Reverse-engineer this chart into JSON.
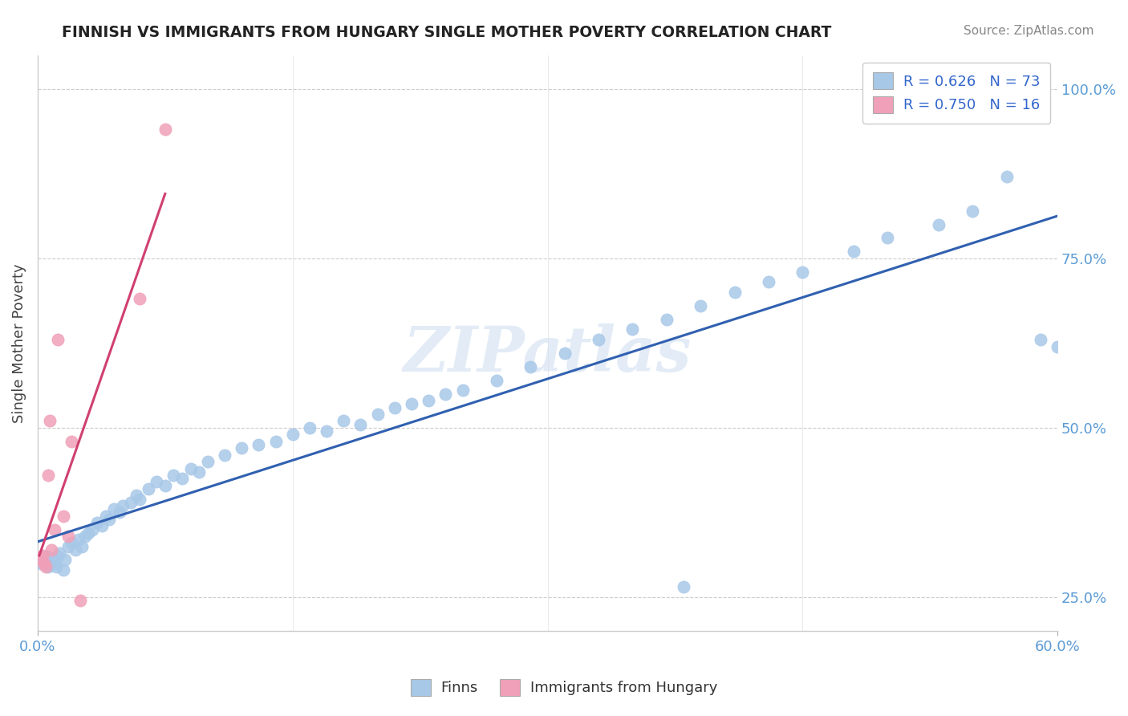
{
  "title": "FINNISH VS IMMIGRANTS FROM HUNGARY SINGLE MOTHER POVERTY CORRELATION CHART",
  "source": "Source: ZipAtlas.com",
  "ylabel": "Single Mother Poverty",
  "watermark": "ZIPatlas",
  "finns_color": "#a8c8e8",
  "hungary_color": "#f0a0b8",
  "trend_finns_color": "#3060b0",
  "trend_hungary_color": "#d04070",
  "finns_x": [
    0.002,
    0.003,
    0.004,
    0.005,
    0.006,
    0.007,
    0.008,
    0.009,
    0.01,
    0.011,
    0.012,
    0.013,
    0.015,
    0.016,
    0.018,
    0.02,
    0.022,
    0.024,
    0.026,
    0.028,
    0.03,
    0.032,
    0.035,
    0.038,
    0.04,
    0.042,
    0.045,
    0.048,
    0.05,
    0.055,
    0.058,
    0.06,
    0.065,
    0.07,
    0.075,
    0.08,
    0.085,
    0.09,
    0.095,
    0.1,
    0.11,
    0.12,
    0.13,
    0.14,
    0.15,
    0.16,
    0.17,
    0.18,
    0.19,
    0.2,
    0.21,
    0.22,
    0.23,
    0.24,
    0.25,
    0.27,
    0.29,
    0.31,
    0.33,
    0.35,
    0.37,
    0.39,
    0.41,
    0.43,
    0.45,
    0.48,
    0.5,
    0.53,
    0.55,
    0.57,
    0.59,
    0.6,
    0.38
  ],
  "finns_y": [
    0.3,
    0.302,
    0.305,
    0.31,
    0.295,
    0.298,
    0.308,
    0.303,
    0.3,
    0.295,
    0.31,
    0.315,
    0.29,
    0.305,
    0.325,
    0.33,
    0.32,
    0.335,
    0.325,
    0.34,
    0.345,
    0.35,
    0.36,
    0.355,
    0.37,
    0.365,
    0.38,
    0.375,
    0.385,
    0.39,
    0.4,
    0.395,
    0.41,
    0.42,
    0.415,
    0.43,
    0.425,
    0.44,
    0.435,
    0.45,
    0.46,
    0.47,
    0.475,
    0.48,
    0.49,
    0.5,
    0.495,
    0.51,
    0.505,
    0.52,
    0.53,
    0.535,
    0.54,
    0.55,
    0.555,
    0.57,
    0.59,
    0.61,
    0.63,
    0.645,
    0.66,
    0.68,
    0.7,
    0.715,
    0.73,
    0.76,
    0.78,
    0.8,
    0.82,
    0.87,
    0.63,
    0.62,
    0.265
  ],
  "hungary_x": [
    0.001,
    0.002,
    0.003,
    0.004,
    0.005,
    0.006,
    0.007,
    0.008,
    0.01,
    0.012,
    0.015,
    0.018,
    0.02,
    0.025,
    0.06,
    0.075
  ],
  "hungary_y": [
    0.305,
    0.308,
    0.312,
    0.3,
    0.295,
    0.43,
    0.51,
    0.32,
    0.35,
    0.63,
    0.37,
    0.34,
    0.48,
    0.245,
    0.69,
    0.94
  ],
  "xlim": [
    0.0,
    0.6
  ],
  "ylim": [
    0.2,
    1.05
  ],
  "yticks": [
    0.25,
    0.5,
    0.75,
    1.0
  ],
  "ytick_labels": [
    "25.0%",
    "50.0%",
    "75.0%",
    "100.0%"
  ],
  "xtick_labels": [
    "0.0%",
    "60.0%"
  ],
  "legend_r1": "R = 0.626",
  "legend_n1": "N = 73",
  "legend_r2": "R = 0.750",
  "legend_n2": "N = 16"
}
